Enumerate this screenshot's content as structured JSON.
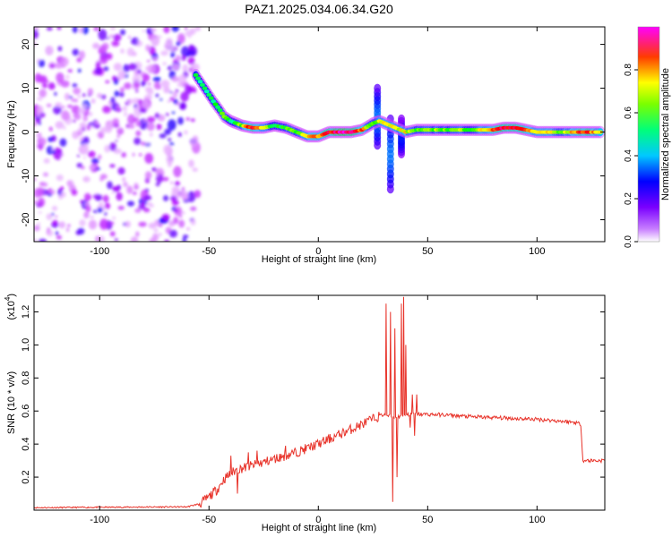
{
  "title": "PAZ1.2025.034.06.34.G20",
  "chart_data": [
    {
      "type": "heatmap",
      "xlabel": "Height of straight line (km)",
      "ylabel": "Frequency (Hz)",
      "xlim": [
        -130,
        131
      ],
      "ylim": [
        -25,
        24
      ],
      "xticks": [
        -100,
        -50,
        0,
        50,
        100
      ],
      "yticks": [
        -20,
        -10,
        0,
        10,
        20
      ],
      "colorbar": {
        "label": "Normalized spectral amplitude",
        "ticks": [
          "0.0",
          "0.2",
          "0.4",
          "0.6",
          "0.8"
        ],
        "tick_values": [
          0.0,
          0.2,
          0.4,
          0.6,
          0.8
        ],
        "range": [
          0,
          1
        ],
        "colors": [
          "#ffffff",
          "#b400ff",
          "#0000ff",
          "#00ffff",
          "#00ff00",
          "#ffff00",
          "#ff0000",
          "#ff00ff"
        ]
      },
      "noise_region": {
        "x": [
          -130,
          -55
        ],
        "y": [
          -25,
          24
        ],
        "amplitude": 0.25
      },
      "ridge": [
        {
          "x": -56,
          "y": 13,
          "a": 0.55
        },
        {
          "x": -52,
          "y": 10,
          "a": 0.5
        },
        {
          "x": -48,
          "y": 7,
          "a": 0.5
        },
        {
          "x": -45,
          "y": 5,
          "a": 0.55
        },
        {
          "x": -43,
          "y": 3.5,
          "a": 0.6
        },
        {
          "x": -40,
          "y": 2.5,
          "a": 0.5
        },
        {
          "x": -35,
          "y": 1.5,
          "a": 0.65
        },
        {
          "x": -30,
          "y": 1,
          "a": 0.9
        },
        {
          "x": -25,
          "y": 1,
          "a": 0.7
        },
        {
          "x": -20,
          "y": 1.5,
          "a": 0.5
        },
        {
          "x": -15,
          "y": 1,
          "a": 0.6
        },
        {
          "x": -10,
          "y": 0,
          "a": 0.6
        },
        {
          "x": -5,
          "y": -1,
          "a": 0.7
        },
        {
          "x": 0,
          "y": -1,
          "a": 0.8
        },
        {
          "x": 5,
          "y": 0,
          "a": 0.85
        },
        {
          "x": 10,
          "y": 0,
          "a": 0.95
        },
        {
          "x": 15,
          "y": 0,
          "a": 0.95
        },
        {
          "x": 20,
          "y": 0.5,
          "a": 0.8
        },
        {
          "x": 25,
          "y": 2,
          "a": 0.6
        },
        {
          "x": 28,
          "y": 2.5,
          "a": 0.7
        },
        {
          "x": 40,
          "y": 0,
          "a": 0.7
        },
        {
          "x": 45,
          "y": 0.5,
          "a": 0.6
        },
        {
          "x": 50,
          "y": 0.5,
          "a": 0.6
        },
        {
          "x": 55,
          "y": 0.5,
          "a": 0.65
        },
        {
          "x": 60,
          "y": 0.5,
          "a": 0.6
        },
        {
          "x": 65,
          "y": 0.5,
          "a": 0.65
        },
        {
          "x": 70,
          "y": 0.5,
          "a": 0.6
        },
        {
          "x": 75,
          "y": 0.5,
          "a": 0.7
        },
        {
          "x": 80,
          "y": 0.5,
          "a": 0.8
        },
        {
          "x": 85,
          "y": 1,
          "a": 0.9
        },
        {
          "x": 90,
          "y": 1,
          "a": 0.9
        },
        {
          "x": 95,
          "y": 0.5,
          "a": 0.8
        },
        {
          "x": 100,
          "y": 0,
          "a": 0.7
        },
        {
          "x": 105,
          "y": 0,
          "a": 0.75
        },
        {
          "x": 110,
          "y": 0,
          "a": 0.6
        },
        {
          "x": 115,
          "y": 0,
          "a": 0.7
        },
        {
          "x": 120,
          "y": 0,
          "a": 0.85
        },
        {
          "x": 125,
          "y": 0,
          "a": 0.8
        },
        {
          "x": 130,
          "y": 0,
          "a": 0.7
        }
      ],
      "vertical_streaks": [
        {
          "x": 27,
          "y_from": -3,
          "y_to": 10,
          "a": 0.35
        },
        {
          "x": 33,
          "y_from": -13,
          "y_to": 3,
          "a": 0.35
        },
        {
          "x": 38,
          "y_from": -5,
          "y_to": 3,
          "a": 0.3
        }
      ]
    },
    {
      "type": "line",
      "xlabel": "Height of straight line (km)",
      "ylabel": "SNR (10 * v/v)",
      "scale_note": "(x10",
      "scale_exp": "4",
      "scale_suffix": ")",
      "xlim": [
        -130,
        131
      ],
      "ylim": [
        0,
        1.3
      ],
      "xticks": [
        -100,
        -50,
        0,
        50,
        100
      ],
      "yticks": [
        0.2,
        0.4,
        0.6,
        0.8,
        1.0,
        1.2
      ],
      "ytick_labels": [
        "0.2",
        "0.4",
        "0.6",
        "0.8",
        "1.0",
        "1.2"
      ],
      "color": "#e8332a",
      "envelope": {
        "x": [
          -130,
          -60,
          -54,
          -50,
          -46,
          -43,
          -40,
          -38,
          -36,
          -30,
          -20,
          -10,
          0,
          10,
          20,
          28,
          30,
          35,
          40,
          45,
          50,
          60,
          70,
          80,
          90,
          100,
          110,
          118,
          120,
          121,
          130
        ],
        "y": [
          0.015,
          0.02,
          0.04,
          0.08,
          0.13,
          0.19,
          0.22,
          0.24,
          0.25,
          0.27,
          0.31,
          0.35,
          0.4,
          0.46,
          0.52,
          0.57,
          0.58,
          0.56,
          0.58,
          0.58,
          0.58,
          0.575,
          0.565,
          0.56,
          0.555,
          0.55,
          0.54,
          0.53,
          0.52,
          0.3,
          0.3
        ]
      },
      "spikes": [
        {
          "x": -40,
          "y": 0.33
        },
        {
          "x": -37,
          "y": 0.1
        },
        {
          "x": -32,
          "y": 0.35
        },
        {
          "x": -28,
          "y": 0.36
        },
        {
          "x": -20,
          "y": 0.33
        },
        {
          "x": -15,
          "y": 0.39
        },
        {
          "x": 31,
          "y": 1.25
        },
        {
          "x": 33,
          "y": 1.2
        },
        {
          "x": 34,
          "y": 0.05
        },
        {
          "x": 35,
          "y": 1.1
        },
        {
          "x": 36,
          "y": 0.2
        },
        {
          "x": 38,
          "y": 1.25
        },
        {
          "x": 39,
          "y": 1.29
        },
        {
          "x": 40,
          "y": 1.0
        },
        {
          "x": 42,
          "y": 0.5
        },
        {
          "x": 43,
          "y": 0.7
        },
        {
          "x": 44,
          "y": 0.45
        },
        {
          "x": 45,
          "y": 0.7
        }
      ]
    }
  ]
}
